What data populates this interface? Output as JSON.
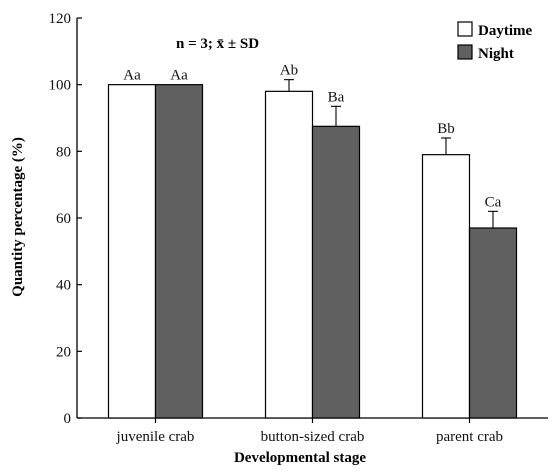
{
  "chart_data": {
    "type": "bar",
    "title": "",
    "xlabel": "Developmental stage",
    "ylabel": "Quantity percentage (%)",
    "ylim": [
      0,
      120
    ],
    "yticks": [
      "0",
      "20",
      "40",
      "60",
      "80",
      "100",
      "120"
    ],
    "categories": [
      "juvenile crab",
      "button-sized crab",
      "parent crab"
    ],
    "series": [
      {
        "name": "Daytime",
        "color": "#ffffff",
        "values": [
          100,
          98,
          79
        ],
        "errors": [
          0,
          3.5,
          5
        ],
        "labels": [
          "Aa",
          "Ab",
          "Bb"
        ]
      },
      {
        "name": "Night",
        "color": "#606060",
        "values": [
          100,
          87.5,
          57
        ],
        "errors": [
          0,
          6,
          5
        ],
        "labels": [
          "Aa",
          "Ba",
          "Ca"
        ]
      }
    ],
    "annotation": "n = 3; x̄ ± SD",
    "legend_position": "top-right",
    "grid": false
  }
}
